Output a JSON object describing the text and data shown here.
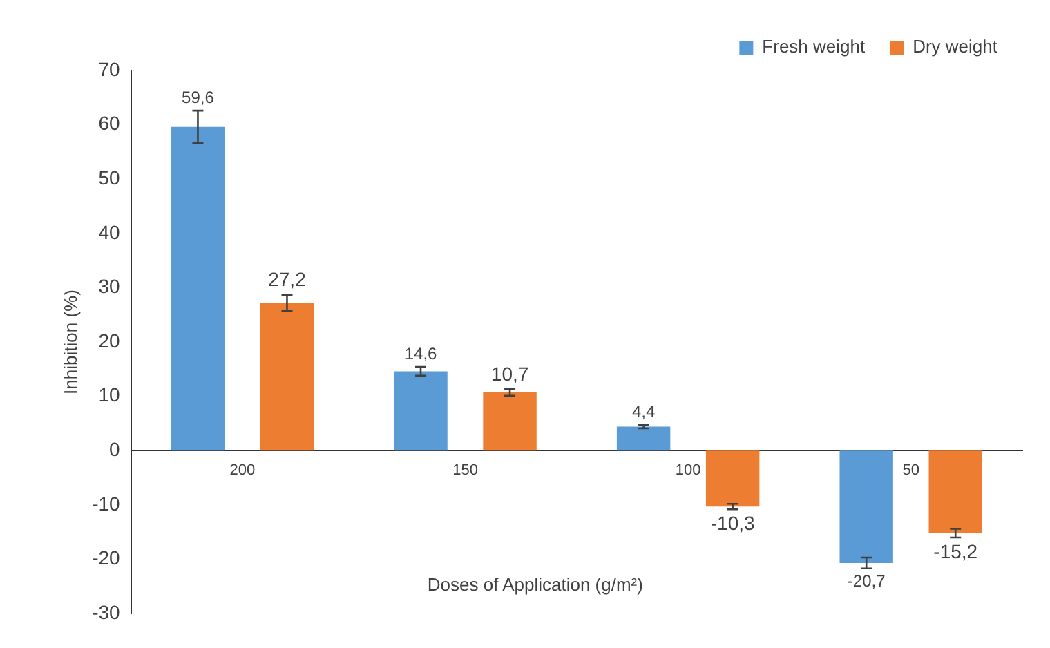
{
  "chart_data": {
    "type": "bar",
    "xlabel": "Doses of Application (g/m²)",
    "ylabel": "Inhibition (%)",
    "categories": [
      "200",
      "150",
      "100",
      "50"
    ],
    "series": [
      {
        "name": "Fresh weight",
        "color": "#5b9bd5",
        "values": [
          59.6,
          14.6,
          4.4,
          -20.7
        ],
        "errors": [
          3,
          0.8,
          0.3,
          1
        ],
        "value_labels": [
          "59,6",
          "14,6",
          "4,4",
          "-20,7"
        ]
      },
      {
        "name": "Dry weight",
        "color": "#ed7d31",
        "values": [
          27.2,
          10.7,
          -10.3,
          -15.2
        ],
        "errors": [
          1.5,
          0.6,
          0.5,
          0.8
        ],
        "value_labels": [
          "27,2",
          "10,7",
          "-10,3",
          "-15,2"
        ]
      }
    ],
    "ylim": [
      -30,
      70
    ],
    "yticks": [
      -30,
      -20,
      -10,
      0,
      10,
      20,
      30,
      40,
      50,
      60,
      70
    ],
    "grid": false,
    "legend": "top right"
  }
}
